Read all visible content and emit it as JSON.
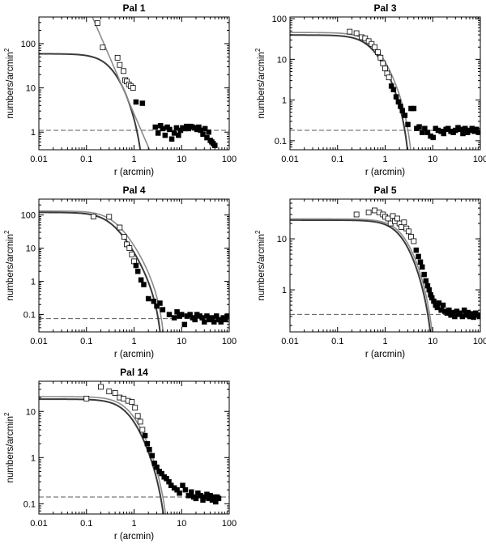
{
  "chart_data": [
    {
      "type": "scatter",
      "title": "Pal 1",
      "xlabel": "r (arcmin)",
      "ylabel": "numbers/arcmin",
      "ylabel_sup": "2",
      "xscale": "log",
      "yscale": "log",
      "xlim": [
        0.01,
        100
      ],
      "ylim": [
        0.4,
        400
      ],
      "xticks": [
        0.01,
        0.1,
        1,
        10,
        100
      ],
      "xtick_labels": [
        "0.01",
        "0.1",
        "1",
        "10",
        "100"
      ],
      "yticks": [
        1,
        10,
        100
      ],
      "ytick_labels": [
        "1",
        "10",
        "100"
      ],
      "background_level": 1.1,
      "series": [
        {
          "style": "open-square",
          "x": [
            0.17,
            0.22,
            0.45,
            0.5,
            0.6,
            0.65,
            0.7,
            0.78,
            0.85,
            0.95
          ],
          "y": [
            290,
            82,
            48,
            33,
            24,
            15,
            14,
            12,
            11,
            10
          ]
        },
        {
          "style": "filled-square",
          "x": [
            1.1,
            1.5,
            2.8,
            3.2,
            3.6,
            4.0,
            4.5,
            5.0,
            5.6,
            6.2,
            7.0,
            7.8,
            8.6,
            9.5,
            10.5,
            11.5,
            12.7,
            14,
            15.5,
            17,
            19,
            21,
            23,
            25,
            28,
            31,
            34,
            37,
            40,
            43,
            46,
            50
          ],
          "y": [
            4.8,
            4.5,
            1.3,
            0.95,
            1.4,
            1.2,
            0.85,
            1.3,
            1.15,
            0.7,
            0.95,
            1.25,
            0.85,
            1.1,
            1.25,
            1.2,
            1.35,
            1.2,
            1.35,
            1.3,
            1.25,
            1.15,
            1.3,
            1.1,
            0.9,
            1.2,
            0.75,
            1.0,
            0.65,
            0.6,
            0.55,
            0.5
          ]
        },
        {
          "style": "line-dark",
          "model": "king",
          "k": 90,
          "rc": 0.36,
          "rt": 1.85
        },
        {
          "style": "line-light",
          "model": "power",
          "amp": 2.6,
          "slope": -2.5
        }
      ]
    },
    {
      "type": "scatter",
      "title": "Pal 3",
      "xlabel": "r (arcmin)",
      "ylabel": "numbers/arcmin",
      "ylabel_sup": "2",
      "xscale": "log",
      "yscale": "log",
      "xlim": [
        0.01,
        100
      ],
      "ylim": [
        0.06,
        110
      ],
      "xticks": [
        0.01,
        0.1,
        1,
        10,
        100
      ],
      "xtick_labels": [
        "0.01",
        "0.1",
        "1",
        "10",
        "100"
      ],
      "yticks": [
        0.1,
        1,
        10,
        100
      ],
      "ytick_labels": [
        "0.1",
        "1",
        "10",
        "100"
      ],
      "background_level": 0.18,
      "series": [
        {
          "style": "open-square",
          "x": [
            0.18,
            0.25,
            0.32,
            0.38,
            0.45,
            0.52,
            0.6,
            0.7,
            0.8,
            0.9,
            1.0,
            1.1,
            1.2
          ],
          "y": [
            48,
            44,
            35,
            33,
            28,
            24,
            20,
            15,
            11,
            8,
            6,
            4.5,
            3.6
          ]
        },
        {
          "style": "filled-square",
          "x": [
            1.35,
            1.5,
            1.7,
            1.9,
            2.1,
            2.3,
            2.6,
            3.0,
            3.5,
            4.0,
            4.6,
            5.2,
            6.0,
            6.8,
            7.8,
            9,
            10.2,
            11.5,
            13,
            15,
            17,
            19,
            21,
            24,
            27,
            30,
            34,
            38,
            43,
            48,
            54,
            60,
            67,
            75,
            83,
            92
          ],
          "y": [
            2.2,
            1.8,
            1.2,
            0.9,
            0.7,
            0.55,
            0.42,
            0.25,
            0.62,
            0.62,
            0.2,
            0.22,
            0.16,
            0.2,
            0.16,
            0.13,
            0.12,
            0.2,
            0.18,
            0.17,
            0.15,
            0.19,
            0.2,
            0.17,
            0.16,
            0.18,
            0.21,
            0.19,
            0.15,
            0.2,
            0.16,
            0.18,
            0.2,
            0.17,
            0.19,
            0.16
          ]
        },
        {
          "style": "line-dark",
          "model": "king",
          "k": 55,
          "rc": 0.55,
          "rt": 3.6
        },
        {
          "style": "line-light",
          "model": "king",
          "k": 62,
          "rc": 0.6,
          "rt": 4.2
        }
      ]
    },
    {
      "type": "scatter",
      "title": "Pal 4",
      "xlabel": "r (arcmin)",
      "ylabel": "numbers/arcmin",
      "ylabel_sup": "2",
      "xscale": "log",
      "yscale": "log",
      "xlim": [
        0.01,
        100
      ],
      "ylim": [
        0.03,
        300
      ],
      "xticks": [
        0.01,
        0.1,
        1,
        10,
        100
      ],
      "xtick_labels": [
        "0.01",
        "0.1",
        "1",
        "10",
        "100"
      ],
      "yticks": [
        0.1,
        1,
        10,
        100
      ],
      "ytick_labels": [
        "0.1",
        "1",
        "10",
        "100"
      ],
      "background_level": 0.075,
      "series": [
        {
          "style": "open-square",
          "x": [
            0.14,
            0.3,
            0.5,
            0.62,
            0.7,
            0.8,
            0.9,
            1.0
          ],
          "y": [
            90,
            88,
            42,
            22,
            13,
            10,
            6.5,
            4
          ]
        },
        {
          "style": "filled-square",
          "x": [
            1.1,
            1.2,
            1.4,
            1.6,
            2.0,
            2.6,
            3.0,
            3.5,
            4.0,
            5.5,
            7.0,
            8.0,
            9.0,
            10,
            11.5,
            13,
            15,
            17,
            19,
            21,
            24,
            27,
            30,
            34,
            38,
            43,
            48,
            54,
            60,
            67,
            75,
            83,
            92
          ],
          "y": [
            3.0,
            2.0,
            1.1,
            0.8,
            0.3,
            0.25,
            0.18,
            0.22,
            0.14,
            0.1,
            0.08,
            0.12,
            0.09,
            0.1,
            0.05,
            0.09,
            0.1,
            0.08,
            0.07,
            0.1,
            0.09,
            0.08,
            0.06,
            0.09,
            0.07,
            0.08,
            0.06,
            0.09,
            0.07,
            0.06,
            0.08,
            0.07,
            0.09
          ]
        },
        {
          "style": "line-dark",
          "model": "king",
          "k": 140,
          "rc": 0.32,
          "rt": 4.2
        },
        {
          "style": "line-light",
          "model": "king",
          "k": 155,
          "rc": 0.38,
          "rt": 4.8
        }
      ]
    },
    {
      "type": "scatter",
      "title": "Pal 5",
      "xlabel": "r (arcmin)",
      "ylabel": "numbers/arcmin",
      "ylabel_sup": "2",
      "xscale": "log",
      "yscale": "log",
      "xlim": [
        0.01,
        100
      ],
      "ylim": [
        0.15,
        60
      ],
      "xticks": [
        0.01,
        0.1,
        1,
        10,
        100
      ],
      "xtick_labels": [
        "0.01",
        "0.1",
        "1",
        "10",
        "100"
      ],
      "yticks": [
        1,
        10
      ],
      "ytick_labels": [
        "1",
        "10"
      ],
      "background_level": 0.33,
      "series": [
        {
          "style": "open-square",
          "x": [
            0.25,
            0.45,
            0.6,
            0.75,
            0.9,
            1.0,
            1.15,
            1.3,
            1.45,
            1.6,
            1.8,
            2.0,
            2.2,
            2.5,
            2.8,
            3.1,
            3.5,
            4.0
          ],
          "y": [
            30,
            33,
            36,
            33,
            30,
            27,
            25,
            20,
            28,
            22,
            25,
            20,
            17,
            21,
            16,
            14,
            11,
            9
          ]
        },
        {
          "style": "filled-square",
          "x": [
            4.5,
            5.0,
            5.5,
            6.0,
            6.6,
            7.2,
            7.8,
            8.4,
            9.0,
            9.6,
            10.5,
            11.5,
            12.5,
            13.5,
            15,
            16.5,
            18,
            20,
            22,
            24,
            26,
            29,
            32,
            35,
            38,
            42,
            46,
            50,
            55,
            60,
            66,
            72,
            80,
            88,
            96
          ],
          "y": [
            6,
            4.5,
            3.5,
            2.8,
            2.0,
            1.5,
            1.2,
            1.0,
            0.8,
            0.7,
            0.6,
            0.5,
            0.45,
            0.55,
            0.4,
            0.5,
            0.38,
            0.35,
            0.4,
            0.32,
            0.36,
            0.3,
            0.38,
            0.33,
            0.35,
            0.3,
            0.4,
            0.32,
            0.36,
            0.3,
            0.34,
            0.29,
            0.35,
            0.32,
            0.3
          ]
        },
        {
          "style": "line-dark",
          "model": "king",
          "k": 36,
          "rc": 2.4,
          "rt": 12
        },
        {
          "style": "line-light",
          "model": "king",
          "k": 38,
          "rc": 2.6,
          "rt": 13
        }
      ]
    },
    {
      "type": "scatter",
      "title": "Pal 14",
      "xlabel": "r (arcmin)",
      "ylabel": "numbers/arcmin",
      "ylabel_sup": "2",
      "xscale": "log",
      "yscale": "log",
      "xlim": [
        0.01,
        100
      ],
      "ylim": [
        0.06,
        45
      ],
      "xticks": [
        0.01,
        0.1,
        1,
        10,
        100
      ],
      "xtick_labels": [
        "0.01",
        "0.1",
        "1",
        "10",
        "100"
      ],
      "yticks": [
        0.1,
        1,
        10
      ],
      "ytick_labels": [
        "0.1",
        "1",
        "10"
      ],
      "background_level": 0.14,
      "series": [
        {
          "style": "open-square",
          "x": [
            0.1,
            0.2,
            0.3,
            0.4,
            0.5,
            0.6,
            0.75,
            0.9,
            1.05,
            1.2,
            1.35,
            1.5
          ],
          "y": [
            19,
            34,
            27,
            25,
            20,
            19,
            17,
            16,
            12,
            8,
            6,
            4
          ]
        },
        {
          "style": "filled-square",
          "x": [
            1.7,
            1.9,
            2.1,
            2.4,
            2.7,
            3.0,
            3.4,
            3.8,
            4.3,
            4.8,
            5.4,
            6.0,
            7.0,
            8.0,
            9.0,
            10.5,
            12,
            14,
            16,
            18,
            20,
            22,
            25,
            28,
            31,
            34,
            37,
            40,
            44,
            48,
            52,
            56,
            60
          ],
          "y": [
            3,
            2,
            1.5,
            1.1,
            0.75,
            0.62,
            0.5,
            0.45,
            0.38,
            0.35,
            0.3,
            0.25,
            0.22,
            0.2,
            0.17,
            0.25,
            0.2,
            0.15,
            0.18,
            0.14,
            0.13,
            0.17,
            0.15,
            0.12,
            0.14,
            0.16,
            0.13,
            0.15,
            0.12,
            0.14,
            0.11,
            0.14,
            0.13
          ]
        },
        {
          "style": "line-dark",
          "model": "king",
          "k": 25,
          "rc": 0.8,
          "rt": 5.6
        },
        {
          "style": "line-light",
          "model": "king",
          "k": 28,
          "rc": 0.85,
          "rt": 6.2
        }
      ]
    }
  ],
  "colors": {
    "model_dark": "#3a3a3a",
    "model_light": "#8c8c8c",
    "background_line": "#5a5a5a",
    "point": "#000000"
  }
}
